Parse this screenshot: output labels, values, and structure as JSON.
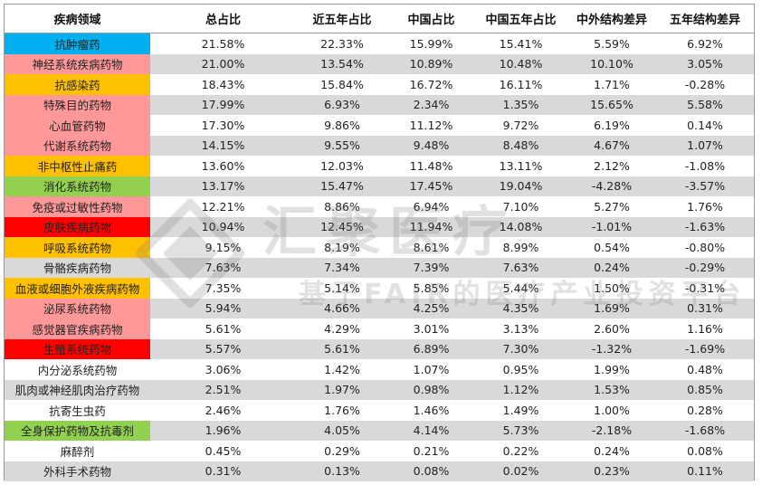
{
  "table": {
    "headers": [
      "疾病领域",
      "总占比",
      "近五年占比",
      "中国占比",
      "中国五年占比",
      "中外结构差异",
      "五年结构差异"
    ],
    "rows": [
      {
        "name": "抗肿瘤药",
        "color": "#00b0f0",
        "values": [
          "21.58%",
          "22.33%",
          "15.99%",
          "15.41%",
          "5.59%",
          "6.92%"
        ]
      },
      {
        "name": "神经系统疾病药物",
        "color": "#ff9999",
        "values": [
          "21.00%",
          "13.54%",
          "10.89%",
          "10.48%",
          "10.10%",
          "3.05%"
        ]
      },
      {
        "name": "抗感染药",
        "color": "#ffc000",
        "values": [
          "18.43%",
          "15.84%",
          "16.72%",
          "16.11%",
          "1.71%",
          "-0.28%"
        ]
      },
      {
        "name": "特殊目的药物",
        "color": "#ff9999",
        "values": [
          "17.99%",
          "6.93%",
          "2.34%",
          "1.35%",
          "15.65%",
          "5.58%"
        ]
      },
      {
        "name": "心血管药物",
        "color": "#ff9999",
        "values": [
          "17.30%",
          "9.86%",
          "11.12%",
          "9.72%",
          "6.19%",
          "0.14%"
        ]
      },
      {
        "name": "代谢系统药物",
        "color": "#ff9999",
        "values": [
          "14.15%",
          "9.55%",
          "9.48%",
          "8.48%",
          "4.67%",
          "1.07%"
        ]
      },
      {
        "name": "非中枢性止痛药",
        "color": "#ffc000",
        "values": [
          "13.60%",
          "12.03%",
          "11.48%",
          "13.11%",
          "2.12%",
          "-1.08%"
        ]
      },
      {
        "name": "消化系统药物",
        "color": "#92d050",
        "values": [
          "13.17%",
          "15.47%",
          "17.45%",
          "19.04%",
          "-4.28%",
          "-3.57%"
        ]
      },
      {
        "name": "免疫或过敏性药物",
        "color": "#ff9999",
        "values": [
          "12.21%",
          "8.86%",
          "6.94%",
          "7.10%",
          "5.27%",
          "1.76%"
        ]
      },
      {
        "name": "皮肤疾病药物",
        "color": "#ff0000",
        "values": [
          "10.94%",
          "12.45%",
          "11.94%",
          "14.08%",
          "-1.01%",
          "-1.63%"
        ]
      },
      {
        "name": "呼吸系统药物",
        "color": "#ffc000",
        "values": [
          "9.15%",
          "8.19%",
          "8.61%",
          "8.99%",
          "0.54%",
          "-0.80%"
        ]
      },
      {
        "name": "骨骼疾病药物",
        "color": "",
        "values": [
          "7.63%",
          "7.34%",
          "7.39%",
          "7.63%",
          "0.24%",
          "-0.29%"
        ]
      },
      {
        "name": "血液或细胞外液疾病药物",
        "color": "#ffc000",
        "values": [
          "7.35%",
          "5.14%",
          "5.85%",
          "5.44%",
          "1.50%",
          "-0.31%"
        ]
      },
      {
        "name": "泌尿系统药物",
        "color": "#ff9999",
        "values": [
          "5.94%",
          "4.66%",
          "4.25%",
          "4.35%",
          "1.69%",
          "0.31%"
        ]
      },
      {
        "name": "感觉器官疾病药物",
        "color": "#ff9999",
        "values": [
          "5.61%",
          "4.29%",
          "3.01%",
          "3.13%",
          "2.60%",
          "1.16%"
        ]
      },
      {
        "name": "生殖系统药物",
        "color": "#ff0000",
        "values": [
          "5.57%",
          "5.61%",
          "6.89%",
          "7.30%",
          "-1.32%",
          "-1.69%"
        ]
      },
      {
        "name": "内分泌系统药物",
        "color": "",
        "values": [
          "3.06%",
          "1.42%",
          "1.07%",
          "0.95%",
          "1.99%",
          "0.48%"
        ]
      },
      {
        "name": "肌肉或神经肌肉治疗药物",
        "color": "",
        "values": [
          "2.51%",
          "1.97%",
          "0.98%",
          "1.12%",
          "1.53%",
          "0.85%"
        ]
      },
      {
        "name": "抗寄生虫药",
        "color": "",
        "values": [
          "2.46%",
          "1.76%",
          "1.46%",
          "1.49%",
          "1.00%",
          "0.28%"
        ]
      },
      {
        "name": "全身保护药物及抗毒剂",
        "color": "#92d050",
        "values": [
          "1.96%",
          "4.05%",
          "4.14%",
          "5.73%",
          "-2.18%",
          "-1.68%"
        ]
      },
      {
        "name": "麻醉剂",
        "color": "",
        "values": [
          "0.45%",
          "0.29%",
          "0.21%",
          "0.22%",
          "0.24%",
          "0.08%"
        ]
      },
      {
        "name": "外科手术药物",
        "color": "",
        "values": [
          "0.31%",
          "0.13%",
          "0.08%",
          "0.02%",
          "0.23%",
          "0.11%"
        ]
      }
    ]
  },
  "watermark": {
    "title": "汇聚医疗",
    "subtitle": "基于FAIR的医疗产业投资平台"
  }
}
